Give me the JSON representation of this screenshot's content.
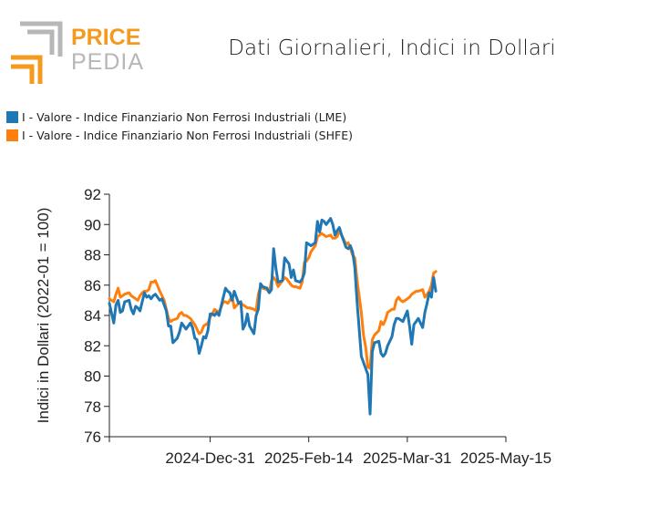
{
  "brand": {
    "logo_word_1": "PRICE",
    "logo_word_2": "PEDIA",
    "colors": {
      "orange": "#f39a1f",
      "gray": "#b7b7b7"
    }
  },
  "chart_data": {
    "type": "line",
    "title": "Dati Giornalieri, Indici in Dollari",
    "xlabel": "",
    "ylabel": "Indici in Dollari (2022-01 = 100)",
    "ylim": [
      76,
      92
    ],
    "yticks": [
      76,
      78,
      80,
      82,
      84,
      86,
      88,
      90,
      92
    ],
    "xlim": [
      "2024-11-15",
      "2025-05-15"
    ],
    "xticks": [
      "2024-Dec-31",
      "2025-Feb-14",
      "2025-Mar-31",
      "2025-May-15"
    ],
    "grid": false,
    "legend_position": "top-left",
    "series": [
      {
        "name": "I - Valore - Indice Finanziario Non Ferrosi Industriali (LME)",
        "color": "#1f77b4",
        "points": [
          [
            "2024-11-15",
            84.8
          ],
          [
            "2024-11-17",
            83.5
          ],
          [
            "2024-11-18",
            84.7
          ],
          [
            "2024-11-19",
            85.0
          ],
          [
            "2024-11-20",
            84.2
          ],
          [
            "2024-11-21",
            84.3
          ],
          [
            "2024-11-22",
            84.9
          ],
          [
            "2024-11-24",
            85.0
          ],
          [
            "2024-11-25",
            84.4
          ],
          [
            "2024-11-26",
            84.1
          ],
          [
            "2024-11-27",
            84.6
          ],
          [
            "2024-11-28",
            84.5
          ],
          [
            "2024-11-29",
            84.3
          ],
          [
            "2024-11-30",
            84.9
          ],
          [
            "2024-12-01",
            85.5
          ],
          [
            "2024-12-02",
            85.2
          ],
          [
            "2024-12-03",
            85.3
          ],
          [
            "2024-12-04",
            85.1
          ],
          [
            "2024-12-05",
            85.3
          ],
          [
            "2024-12-06",
            85.4
          ],
          [
            "2024-12-08",
            85.0
          ],
          [
            "2024-12-09",
            85.1
          ],
          [
            "2024-12-10",
            84.7
          ],
          [
            "2024-12-11",
            84.3
          ],
          [
            "2024-12-12",
            83.3
          ],
          [
            "2024-12-13",
            83.3
          ],
          [
            "2024-12-14",
            82.2
          ],
          [
            "2024-12-16",
            82.5
          ],
          [
            "2024-12-17",
            82.9
          ],
          [
            "2024-12-18",
            83.5
          ],
          [
            "2024-12-19",
            83.3
          ],
          [
            "2024-12-20",
            83.1
          ],
          [
            "2024-12-22",
            83.5
          ],
          [
            "2024-12-23",
            83.2
          ],
          [
            "2024-12-24",
            82.5
          ],
          [
            "2024-12-25",
            82.4
          ],
          [
            "2024-12-26",
            81.5
          ],
          [
            "2024-12-27",
            82.0
          ],
          [
            "2024-12-28",
            82.6
          ],
          [
            "2024-12-29",
            82.5
          ],
          [
            "2024-12-30",
            83.0
          ],
          [
            "2024-12-31",
            84.1
          ],
          [
            "2025-01-01",
            84.1
          ],
          [
            "2025-01-02",
            84.0
          ],
          [
            "2025-01-03",
            84.2
          ],
          [
            "2025-01-04",
            84.0
          ],
          [
            "2025-01-06",
            85.2
          ],
          [
            "2025-01-07",
            85.8
          ],
          [
            "2025-01-08",
            85.6
          ],
          [
            "2025-01-09",
            85.5
          ],
          [
            "2025-01-10",
            85.0
          ],
          [
            "2025-01-11",
            85.6
          ],
          [
            "2025-01-13",
            84.8
          ],
          [
            "2025-01-14",
            84.9
          ],
          [
            "2025-01-15",
            83.1
          ],
          [
            "2025-01-16",
            83.4
          ],
          [
            "2025-01-17",
            84.1
          ],
          [
            "2025-01-18",
            83.3
          ],
          [
            "2025-01-20",
            82.8
          ],
          [
            "2025-01-21",
            84.0
          ],
          [
            "2025-01-22",
            84.4
          ],
          [
            "2025-01-23",
            86.1
          ],
          [
            "2025-01-24",
            85.9
          ],
          [
            "2025-01-26",
            85.8
          ],
          [
            "2025-01-27",
            85.5
          ],
          [
            "2025-01-28",
            85.7
          ],
          [
            "2025-01-29",
            88.4
          ],
          [
            "2025-01-30",
            87.1
          ],
          [
            "2025-01-31",
            86.2
          ],
          [
            "2025-02-02",
            86.3
          ],
          [
            "2025-02-03",
            87.8
          ],
          [
            "2025-02-04",
            87.6
          ],
          [
            "2025-02-05",
            87.4
          ],
          [
            "2025-02-06",
            86.5
          ],
          [
            "2025-02-07",
            87.0
          ],
          [
            "2025-02-08",
            86.3
          ],
          [
            "2025-02-10",
            86.2
          ],
          [
            "2025-02-11",
            86.4
          ],
          [
            "2025-02-12",
            86.8
          ],
          [
            "2025-02-13",
            88.8
          ],
          [
            "2025-02-14",
            88.7
          ],
          [
            "2025-02-15",
            88.6
          ],
          [
            "2025-02-17",
            88.8
          ],
          [
            "2025-02-18",
            90.2
          ],
          [
            "2025-02-19",
            89.5
          ],
          [
            "2025-02-20",
            90.3
          ],
          [
            "2025-02-21",
            90.2
          ],
          [
            "2025-02-22",
            90.0
          ],
          [
            "2025-02-24",
            90.4
          ],
          [
            "2025-02-25",
            90.0
          ],
          [
            "2025-02-26",
            89.3
          ],
          [
            "2025-02-27",
            89.6
          ],
          [
            "2025-02-28",
            89.8
          ],
          [
            "2025-03-01",
            89.3
          ],
          [
            "2025-03-03",
            88.5
          ],
          [
            "2025-03-04",
            88.4
          ],
          [
            "2025-03-05",
            88.6
          ],
          [
            "2025-03-06",
            88.2
          ],
          [
            "2025-03-07",
            87.2
          ],
          [
            "2025-03-08",
            85.0
          ],
          [
            "2025-03-10",
            81.3
          ],
          [
            "2025-03-11",
            80.9
          ],
          [
            "2025-03-12",
            80.5
          ],
          [
            "2025-03-13",
            80.1
          ],
          [
            "2025-03-14",
            77.5
          ],
          [
            "2025-03-15",
            81.6
          ],
          [
            "2025-03-16",
            82.2
          ],
          [
            "2025-03-18",
            82.3
          ],
          [
            "2025-03-19",
            81.5
          ],
          [
            "2025-03-20",
            81.3
          ],
          [
            "2025-03-21",
            81.5
          ],
          [
            "2025-03-22",
            82.0
          ],
          [
            "2025-03-24",
            82.6
          ],
          [
            "2025-03-25",
            83.4
          ],
          [
            "2025-03-26",
            83.8
          ],
          [
            "2025-03-27",
            83.8
          ],
          [
            "2025-03-28",
            83.7
          ],
          [
            "2025-03-29",
            83.6
          ],
          [
            "2025-03-31",
            84.3
          ],
          [
            "2025-04-01",
            83.3
          ],
          [
            "2025-04-02",
            82.1
          ],
          [
            "2025-04-03",
            83.4
          ],
          [
            "2025-04-04",
            83.6
          ],
          [
            "2025-04-05",
            83.8
          ],
          [
            "2025-04-07",
            83.2
          ],
          [
            "2025-04-08",
            84.2
          ],
          [
            "2025-04-09",
            84.8
          ],
          [
            "2025-04-10",
            85.5
          ],
          [
            "2025-04-11",
            85.2
          ],
          [
            "2025-04-12",
            86.5
          ],
          [
            "2025-04-13",
            85.6
          ]
        ]
      },
      {
        "name": "I - Valore - Indice Finanziario Non Ferrosi Industriali (SHFE)",
        "color": "#ff7f0e",
        "points": [
          [
            "2024-11-15",
            85.1
          ],
          [
            "2024-11-17",
            84.9
          ],
          [
            "2024-11-18",
            85.4
          ],
          [
            "2024-11-19",
            85.8
          ],
          [
            "2024-11-20",
            85.2
          ],
          [
            "2024-11-21",
            85.3
          ],
          [
            "2024-11-22",
            85.4
          ],
          [
            "2024-11-24",
            85.5
          ],
          [
            "2024-11-25",
            85.3
          ],
          [
            "2024-11-26",
            85.2
          ],
          [
            "2024-11-27",
            85.1
          ],
          [
            "2024-11-28",
            85.0
          ],
          [
            "2024-11-29",
            85.3
          ],
          [
            "2024-11-30",
            85.5
          ],
          [
            "2024-12-01",
            85.6
          ],
          [
            "2024-12-02",
            85.6
          ],
          [
            "2024-12-03",
            85.7
          ],
          [
            "2024-12-04",
            86.2
          ],
          [
            "2024-12-05",
            86.2
          ],
          [
            "2024-12-06",
            86.3
          ],
          [
            "2024-12-08",
            85.6
          ],
          [
            "2024-12-09",
            85.3
          ],
          [
            "2024-12-10",
            85.0
          ],
          [
            "2024-12-11",
            84.4
          ],
          [
            "2024-12-12",
            83.8
          ],
          [
            "2024-12-13",
            83.6
          ],
          [
            "2024-12-14",
            83.7
          ],
          [
            "2024-12-16",
            83.8
          ],
          [
            "2024-12-17",
            84.1
          ],
          [
            "2024-12-18",
            84.2
          ],
          [
            "2024-12-19",
            84.0
          ],
          [
            "2024-12-20",
            84.0
          ],
          [
            "2024-12-22",
            83.8
          ],
          [
            "2024-12-23",
            83.6
          ],
          [
            "2024-12-24",
            83.4
          ],
          [
            "2024-12-25",
            83.1
          ],
          [
            "2024-12-26",
            82.8
          ],
          [
            "2024-12-27",
            82.9
          ],
          [
            "2024-12-28",
            83.3
          ],
          [
            "2024-12-29",
            83.4
          ],
          [
            "2024-12-30",
            83.5
          ],
          [
            "2024-12-31",
            83.9
          ],
          [
            "2025-01-01",
            84.1
          ],
          [
            "2025-01-02",
            84.4
          ],
          [
            "2025-01-03",
            84.3
          ],
          [
            "2025-01-04",
            84.2
          ],
          [
            "2025-01-06",
            84.9
          ],
          [
            "2025-01-07",
            84.9
          ],
          [
            "2025-01-08",
            84.8
          ],
          [
            "2025-01-09",
            85.0
          ],
          [
            "2025-01-10",
            85.3
          ],
          [
            "2025-01-11",
            84.5
          ],
          [
            "2025-01-13",
            84.8
          ],
          [
            "2025-01-14",
            84.8
          ],
          [
            "2025-01-15",
            84.7
          ],
          [
            "2025-01-16",
            84.6
          ],
          [
            "2025-01-17",
            84.5
          ],
          [
            "2025-01-18",
            84.5
          ],
          [
            "2025-01-20",
            84.4
          ],
          [
            "2025-01-21",
            84.3
          ],
          [
            "2025-01-22",
            85.4
          ],
          [
            "2025-01-23",
            85.9
          ],
          [
            "2025-01-24",
            85.8
          ],
          [
            "2025-01-26",
            85.7
          ],
          [
            "2025-01-27",
            85.5
          ],
          [
            "2025-01-28",
            86.3
          ],
          [
            "2025-01-29",
            86.5
          ],
          [
            "2025-01-30",
            86.3
          ],
          [
            "2025-01-31",
            85.9
          ],
          [
            "2025-02-02",
            86.3
          ],
          [
            "2025-02-03",
            86.5
          ],
          [
            "2025-02-04",
            86.4
          ],
          [
            "2025-02-05",
            86.2
          ],
          [
            "2025-02-06",
            86.0
          ],
          [
            "2025-02-07",
            85.9
          ],
          [
            "2025-02-08",
            85.9
          ],
          [
            "2025-02-10",
            85.8
          ],
          [
            "2025-02-11",
            86.2
          ],
          [
            "2025-02-12",
            87.5
          ],
          [
            "2025-02-13",
            87.6
          ],
          [
            "2025-02-14",
            87.8
          ],
          [
            "2025-02-15",
            88.2
          ],
          [
            "2025-02-17",
            88.6
          ],
          [
            "2025-02-18",
            89.2
          ],
          [
            "2025-02-19",
            89.3
          ],
          [
            "2025-02-20",
            89.4
          ],
          [
            "2025-02-21",
            89.3
          ],
          [
            "2025-02-22",
            89.2
          ],
          [
            "2025-02-24",
            89.3
          ],
          [
            "2025-02-25",
            89.1
          ],
          [
            "2025-02-26",
            89.1
          ],
          [
            "2025-02-27",
            89.2
          ],
          [
            "2025-02-28",
            89.6
          ],
          [
            "2025-03-01",
            89.3
          ],
          [
            "2025-03-03",
            88.7
          ],
          [
            "2025-03-04",
            88.8
          ],
          [
            "2025-03-05",
            88.4
          ],
          [
            "2025-03-06",
            88.0
          ],
          [
            "2025-03-07",
            87.8
          ],
          [
            "2025-03-08",
            86.4
          ],
          [
            "2025-03-10",
            84.2
          ],
          [
            "2025-03-11",
            82.7
          ],
          [
            "2025-03-12",
            81.9
          ],
          [
            "2025-03-13",
            80.6
          ],
          [
            "2025-03-14",
            80.5
          ],
          [
            "2025-03-15",
            82.4
          ],
          [
            "2025-03-16",
            82.7
          ],
          [
            "2025-03-18",
            83.0
          ],
          [
            "2025-03-19",
            83.6
          ],
          [
            "2025-03-20",
            83.4
          ],
          [
            "2025-03-21",
            83.7
          ],
          [
            "2025-03-22",
            84.2
          ],
          [
            "2025-03-24",
            84.4
          ],
          [
            "2025-03-25",
            84.4
          ],
          [
            "2025-03-26",
            85.0
          ],
          [
            "2025-03-27",
            85.2
          ],
          [
            "2025-03-28",
            85.0
          ],
          [
            "2025-03-29",
            84.9
          ],
          [
            "2025-03-31",
            85.1
          ],
          [
            "2025-04-01",
            85.2
          ],
          [
            "2025-04-02",
            85.4
          ],
          [
            "2025-04-03",
            85.5
          ],
          [
            "2025-04-04",
            85.6
          ],
          [
            "2025-04-05",
            85.6
          ],
          [
            "2025-04-07",
            85.7
          ],
          [
            "2025-04-08",
            85.2
          ],
          [
            "2025-04-09",
            85.4
          ],
          [
            "2025-04-10",
            85.6
          ],
          [
            "2025-04-11",
            86.0
          ],
          [
            "2025-04-12",
            86.8
          ],
          [
            "2025-04-13",
            86.9
          ]
        ]
      }
    ]
  }
}
